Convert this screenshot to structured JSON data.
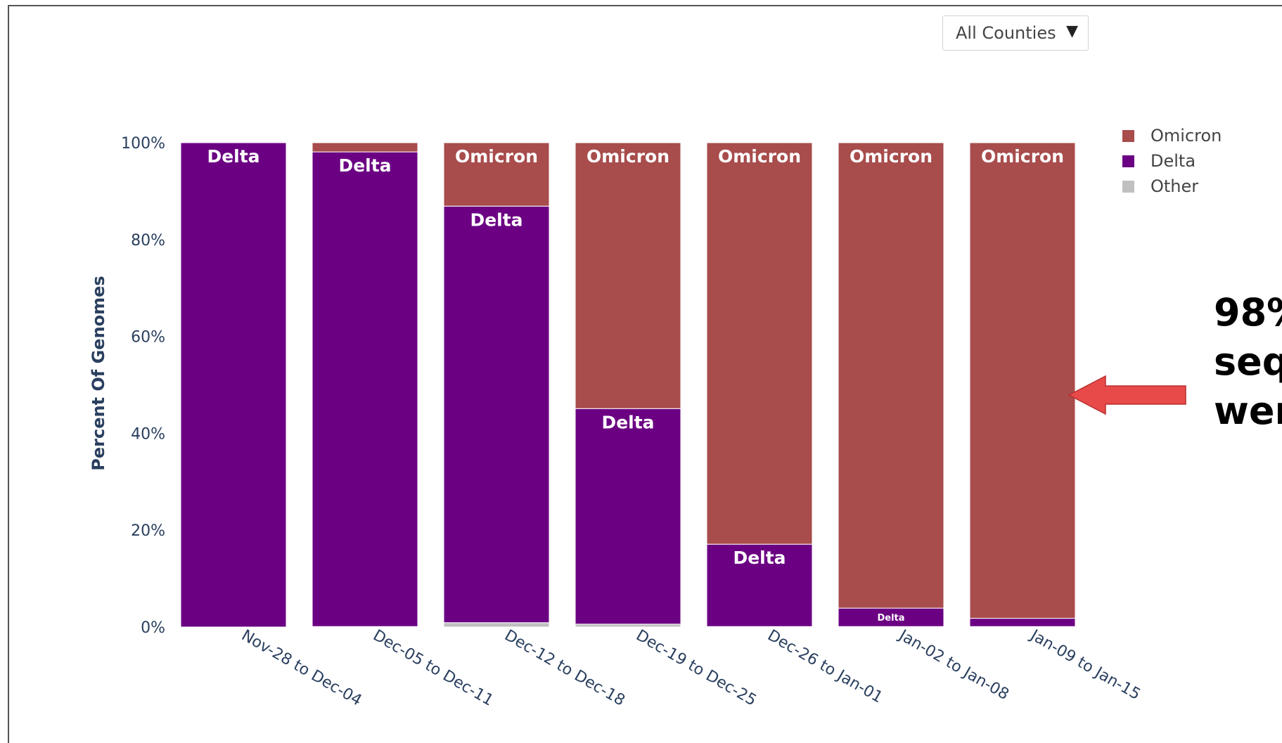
{
  "filter": {
    "selected": "All Counties",
    "caret_icon": "triangle-down-icon"
  },
  "callout": {
    "lines": [
      "98%",
      "seq",
      "wer"
    ],
    "arrow_color": "#e84a4a",
    "arrow_icon": "arrow-left-icon"
  },
  "chart_data": {
    "type": "bar",
    "stacked": true,
    "title": "",
    "xlabel": "",
    "ylabel": "Percent Of Genomes",
    "ylim": [
      0,
      100
    ],
    "yticks": [
      "0%",
      "20%",
      "40%",
      "60%",
      "80%",
      "100%"
    ],
    "categories": [
      "Nov-28 to Dec-04",
      "Dec-05 to Dec-11",
      "Dec-12 to Dec-18",
      "Dec-19 to Dec-25",
      "Dec-26 to Jan-01",
      "Jan-02 to Jan-08",
      "Jan-09 to Jan-15"
    ],
    "series": [
      {
        "name": "Other",
        "color": "#c0c0c0",
        "values": [
          0,
          0.1,
          0.9,
          0.6,
          0.1,
          0.1,
          0.1
        ]
      },
      {
        "name": "Delta",
        "color": "#6b0083",
        "values": [
          100,
          98,
          86,
          44.5,
          17,
          3.8,
          1.7
        ]
      },
      {
        "name": "Omicron",
        "color": "#a84c4c",
        "values": [
          0,
          1.9,
          13.1,
          54.9,
          82.9,
          96.1,
          98.2
        ]
      }
    ],
    "bar_labels": {
      "Delta": [
        "Delta",
        "Delta",
        "Delta",
        "Delta",
        "Delta",
        "Delta",
        ""
      ],
      "Omicron": [
        "",
        "",
        "Omicron",
        "Omicron",
        "Omicron",
        "Omicron",
        "Omicron"
      ]
    },
    "legend": {
      "position": "top-right",
      "entries": [
        "Omicron",
        "Delta",
        "Other"
      ]
    },
    "grid": false
  }
}
